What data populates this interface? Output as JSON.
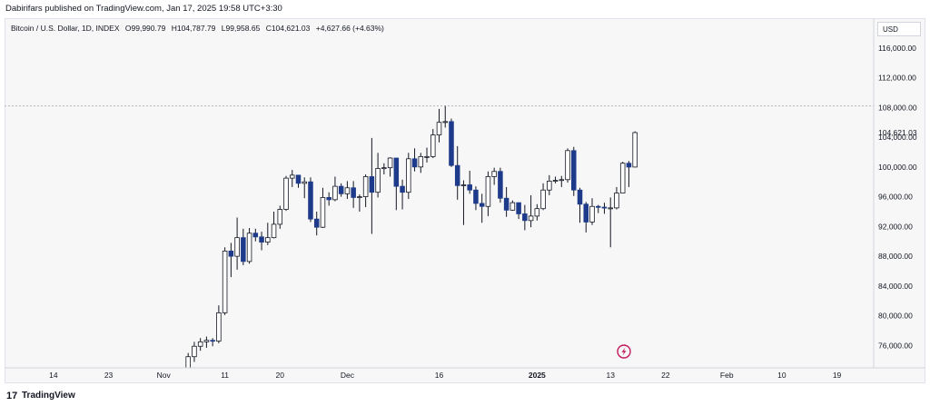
{
  "header": {
    "publisher": "Dabirifars published on TradingView.com, Jan 17, 2025 19:58 UTC+3:30"
  },
  "legend": {
    "symbol": "Bitcoin / U.S. Dollar, 1D, INDEX",
    "open": "O99,990.79",
    "high": "H104,787.79",
    "low": "L99,958.65",
    "close": "C104,621.03",
    "change": "+4,627.66 (+4.63%)"
  },
  "price_axis": {
    "currency": "USD",
    "current_price_label": "104,621.03"
  },
  "footer": {
    "logo_mark": "17",
    "logo_text": "TradingView"
  },
  "colors": {
    "up_body": "#ffffff",
    "down_body": "#1e3a8a",
    "wick": "#131722",
    "grid": "#f7f7f7",
    "high_line": "#b2b5be",
    "lightning": "#c2185b"
  },
  "chart_data": {
    "type": "candlestick",
    "title": "Bitcoin / U.S. Dollar, 1D, INDEX",
    "ylim": [
      73000,
      120000
    ],
    "y_ticks": [
      76000,
      80000,
      84000,
      88000,
      92000,
      96000,
      100000,
      104000,
      108000,
      112000,
      116000
    ],
    "y_tick_labels": [
      "76,000.00",
      "80,000.00",
      "84,000.00",
      "88,000.00",
      "92,000.00",
      "96,000.00",
      "100,000.00",
      "104,000.00",
      "108,000.00",
      "112,000.00",
      "116,000.00"
    ],
    "x_ticks": [
      {
        "date": "2024-10-14",
        "label": "14"
      },
      {
        "date": "2024-10-23",
        "label": "23"
      },
      {
        "date": "2024-11-01",
        "label": "Nov"
      },
      {
        "date": "2024-11-11",
        "label": "11"
      },
      {
        "date": "2024-11-20",
        "label": "20"
      },
      {
        "date": "2024-12-01",
        "label": "Dec"
      },
      {
        "date": "2024-12-16",
        "label": "16"
      },
      {
        "date": "2025-01-01",
        "label": "2025",
        "bold": true
      },
      {
        "date": "2025-01-13",
        "label": "13"
      },
      {
        "date": "2025-01-22",
        "label": "22"
      },
      {
        "date": "2025-02-01",
        "label": "Feb"
      },
      {
        "date": "2025-02-10",
        "label": "10"
      },
      {
        "date": "2025-02-19",
        "label": "19"
      }
    ],
    "x_range": [
      "2024-10-06",
      "2025-02-25"
    ],
    "high_line": 108200,
    "candles": [
      {
        "date": "2024-11-05",
        "o": 68500,
        "h": 75000,
        "l": 68000,
        "c": 74500
      },
      {
        "date": "2024-11-06",
        "o": 74500,
        "h": 76500,
        "l": 73800,
        "c": 75900
      },
      {
        "date": "2024-11-07",
        "o": 75900,
        "h": 77000,
        "l": 75300,
        "c": 76500
      },
      {
        "date": "2024-11-08",
        "o": 76500,
        "h": 77200,
        "l": 75700,
        "c": 76700
      },
      {
        "date": "2024-11-09",
        "o": 76700,
        "h": 77000,
        "l": 75900,
        "c": 76600
      },
      {
        "date": "2024-11-10",
        "o": 76600,
        "h": 81400,
        "l": 76300,
        "c": 80400
      },
      {
        "date": "2024-11-11",
        "o": 80400,
        "h": 89200,
        "l": 80100,
        "c": 88700
      },
      {
        "date": "2024-11-12",
        "o": 88700,
        "h": 89800,
        "l": 85200,
        "c": 88000
      },
      {
        "date": "2024-11-13",
        "o": 88000,
        "h": 93200,
        "l": 86200,
        "c": 90500
      },
      {
        "date": "2024-11-14",
        "o": 90500,
        "h": 91700,
        "l": 86800,
        "c": 87300
      },
      {
        "date": "2024-11-15",
        "o": 87300,
        "h": 91800,
        "l": 87000,
        "c": 91100
      },
      {
        "date": "2024-11-16",
        "o": 91100,
        "h": 91700,
        "l": 90000,
        "c": 90600
      },
      {
        "date": "2024-11-17",
        "o": 90600,
        "h": 91300,
        "l": 88800,
        "c": 89900
      },
      {
        "date": "2024-11-18",
        "o": 89900,
        "h": 92500,
        "l": 89500,
        "c": 90500
      },
      {
        "date": "2024-11-19",
        "o": 90500,
        "h": 94000,
        "l": 90400,
        "c": 92300
      },
      {
        "date": "2024-11-20",
        "o": 92300,
        "h": 94800,
        "l": 91700,
        "c": 94300
      },
      {
        "date": "2024-11-21",
        "o": 94300,
        "h": 98800,
        "l": 94100,
        "c": 98500
      },
      {
        "date": "2024-11-22",
        "o": 98500,
        "h": 99600,
        "l": 97300,
        "c": 98900
      },
      {
        "date": "2024-11-23",
        "o": 98900,
        "h": 98900,
        "l": 97200,
        "c": 97800
      },
      {
        "date": "2024-11-24",
        "o": 97800,
        "h": 98600,
        "l": 95800,
        "c": 98000
      },
      {
        "date": "2024-11-25",
        "o": 98000,
        "h": 98600,
        "l": 92600,
        "c": 93000
      },
      {
        "date": "2024-11-26",
        "o": 93000,
        "h": 94000,
        "l": 90800,
        "c": 91900
      },
      {
        "date": "2024-11-27",
        "o": 91900,
        "h": 97200,
        "l": 91800,
        "c": 95900
      },
      {
        "date": "2024-11-28",
        "o": 95900,
        "h": 96600,
        "l": 94800,
        "c": 95600
      },
      {
        "date": "2024-11-29",
        "o": 95600,
        "h": 98700,
        "l": 95400,
        "c": 97400
      },
      {
        "date": "2024-11-30",
        "o": 97400,
        "h": 97800,
        "l": 96000,
        "c": 96400
      },
      {
        "date": "2024-12-01",
        "o": 96400,
        "h": 98100,
        "l": 95700,
        "c": 97200
      },
      {
        "date": "2024-12-02",
        "o": 97200,
        "h": 98100,
        "l": 94500,
        "c": 95900
      },
      {
        "date": "2024-12-03",
        "o": 95900,
        "h": 96300,
        "l": 94000,
        "c": 96000
      },
      {
        "date": "2024-12-04",
        "o": 96000,
        "h": 99000,
        "l": 94600,
        "c": 98700
      },
      {
        "date": "2024-12-05",
        "o": 98700,
        "h": 103900,
        "l": 91000,
        "c": 96600
      },
      {
        "date": "2024-12-06",
        "o": 96600,
        "h": 101900,
        "l": 95900,
        "c": 99800
      },
      {
        "date": "2024-12-07",
        "o": 99800,
        "h": 100500,
        "l": 99000,
        "c": 99900
      },
      {
        "date": "2024-12-08",
        "o": 99900,
        "h": 101300,
        "l": 98700,
        "c": 101200
      },
      {
        "date": "2024-12-09",
        "o": 101200,
        "h": 101200,
        "l": 94200,
        "c": 97400
      },
      {
        "date": "2024-12-10",
        "o": 97400,
        "h": 98300,
        "l": 94300,
        "c": 96600
      },
      {
        "date": "2024-12-11",
        "o": 96600,
        "h": 101900,
        "l": 95700,
        "c": 101100
      },
      {
        "date": "2024-12-12",
        "o": 101100,
        "h": 102500,
        "l": 99400,
        "c": 100000
      },
      {
        "date": "2024-12-13",
        "o": 100000,
        "h": 101900,
        "l": 99200,
        "c": 101400
      },
      {
        "date": "2024-12-14",
        "o": 101400,
        "h": 102600,
        "l": 100600,
        "c": 101400
      },
      {
        "date": "2024-12-15",
        "o": 101400,
        "h": 105100,
        "l": 101200,
        "c": 104300
      },
      {
        "date": "2024-12-16",
        "o": 104300,
        "h": 107800,
        "l": 103300,
        "c": 106000
      },
      {
        "date": "2024-12-17",
        "o": 106000,
        "h": 108200,
        "l": 105300,
        "c": 106100
      },
      {
        "date": "2024-12-18",
        "o": 106100,
        "h": 106500,
        "l": 100000,
        "c": 100200
      },
      {
        "date": "2024-12-19",
        "o": 100200,
        "h": 102800,
        "l": 95600,
        "c": 97500
      },
      {
        "date": "2024-12-20",
        "o": 97500,
        "h": 98200,
        "l": 92200,
        "c": 97600
      },
      {
        "date": "2024-12-21",
        "o": 97600,
        "h": 99500,
        "l": 96400,
        "c": 96900
      },
      {
        "date": "2024-12-22",
        "o": 96900,
        "h": 97400,
        "l": 94200,
        "c": 95100
      },
      {
        "date": "2024-12-23",
        "o": 95100,
        "h": 96400,
        "l": 92500,
        "c": 94700
      },
      {
        "date": "2024-12-24",
        "o": 94700,
        "h": 99400,
        "l": 93400,
        "c": 98700
      },
      {
        "date": "2024-12-25",
        "o": 98700,
        "h": 99900,
        "l": 97600,
        "c": 99400
      },
      {
        "date": "2024-12-26",
        "o": 99400,
        "h": 99900,
        "l": 95200,
        "c": 95800
      },
      {
        "date": "2024-12-27",
        "o": 95800,
        "h": 97300,
        "l": 93300,
        "c": 94200
      },
      {
        "date": "2024-12-28",
        "o": 94200,
        "h": 95500,
        "l": 94100,
        "c": 95200
      },
      {
        "date": "2024-12-29",
        "o": 95200,
        "h": 95200,
        "l": 93000,
        "c": 93700
      },
      {
        "date": "2024-12-30",
        "o": 93700,
        "h": 94900,
        "l": 91500,
        "c": 92800
      },
      {
        "date": "2024-12-31",
        "o": 92800,
        "h": 96200,
        "l": 91900,
        "c": 93400
      },
      {
        "date": "2025-01-01",
        "o": 93400,
        "h": 95000,
        "l": 92800,
        "c": 94400
      },
      {
        "date": "2025-01-02",
        "o": 94400,
        "h": 97800,
        "l": 94200,
        "c": 96900
      },
      {
        "date": "2025-01-03",
        "o": 96900,
        "h": 98900,
        "l": 96200,
        "c": 98100
      },
      {
        "date": "2025-01-04",
        "o": 98100,
        "h": 98700,
        "l": 97800,
        "c": 98200
      },
      {
        "date": "2025-01-05",
        "o": 98200,
        "h": 98800,
        "l": 97300,
        "c": 98300
      },
      {
        "date": "2025-01-06",
        "o": 98300,
        "h": 102500,
        "l": 97900,
        "c": 102200
      },
      {
        "date": "2025-01-07",
        "o": 102200,
        "h": 102700,
        "l": 96100,
        "c": 96900
      },
      {
        "date": "2025-01-08",
        "o": 96900,
        "h": 97200,
        "l": 92500,
        "c": 95000
      },
      {
        "date": "2025-01-09",
        "o": 95000,
        "h": 95300,
        "l": 91200,
        "c": 92600
      },
      {
        "date": "2025-01-10",
        "o": 92600,
        "h": 95800,
        "l": 92200,
        "c": 94700
      },
      {
        "date": "2025-01-11",
        "o": 94700,
        "h": 94900,
        "l": 93800,
        "c": 94600
      },
      {
        "date": "2025-01-12",
        "o": 94600,
        "h": 95200,
        "l": 93700,
        "c": 94500
      },
      {
        "date": "2025-01-13",
        "o": 94500,
        "h": 95900,
        "l": 89200,
        "c": 94500
      },
      {
        "date": "2025-01-14",
        "o": 94500,
        "h": 97300,
        "l": 94300,
        "c": 96500
      },
      {
        "date": "2025-01-15",
        "o": 96500,
        "h": 100700,
        "l": 96500,
        "c": 100500
      },
      {
        "date": "2025-01-16",
        "o": 100500,
        "h": 100800,
        "l": 97300,
        "c": 99990
      },
      {
        "date": "2025-01-17",
        "o": 99990.79,
        "h": 104787.79,
        "l": 99958.65,
        "c": 104621.03
      }
    ]
  }
}
